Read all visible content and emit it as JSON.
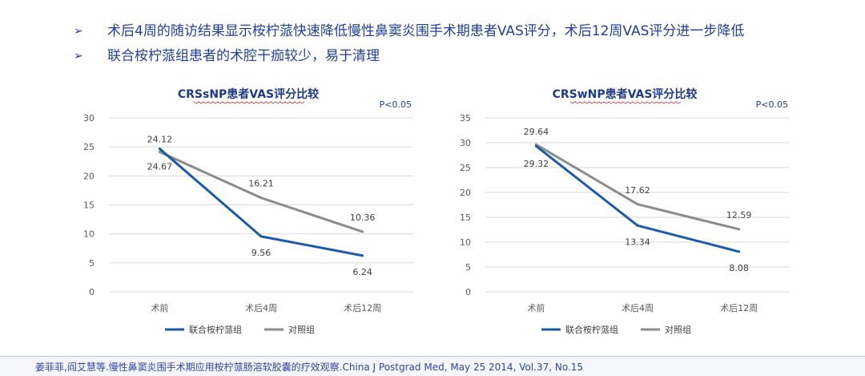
{
  "bullets": [
    {
      "marker": "➢",
      "text": "术后4周的随访结果显示桉柠蒎快速降低慢性鼻窦炎围手术期患者VAS评分，术后12周VAS评分进一步降低"
    },
    {
      "marker": "➢",
      "text": "联合桉柠蒎组患者的术腔干痂较少，易于清理"
    }
  ],
  "chart_data": [
    {
      "type": "line",
      "title": "CRSsNP患者VAS评分比较",
      "annotation": "P<0.05",
      "categories": [
        "术前",
        "术后4周",
        "术后12周"
      ],
      "ylim": [
        0,
        30
      ],
      "yticks": [
        0,
        5,
        10,
        15,
        20,
        25,
        30
      ],
      "grid": true,
      "legend_position": "bottom",
      "series": [
        {
          "name": "联合桉柠蒎组",
          "values": [
            24.67,
            9.56,
            6.24
          ],
          "labels": [
            "24.67",
            "9.56",
            "6.24"
          ],
          "color": "#1c5ba8",
          "label_side": "below"
        },
        {
          "name": "对照组",
          "values": [
            24.12,
            16.21,
            10.36
          ],
          "labels": [
            "24.12",
            "16.21",
            "10.36"
          ],
          "color": "#8c8c8c",
          "label_side": "above"
        }
      ]
    },
    {
      "type": "line",
      "title": "CRSwNP患者VAS评分比较",
      "annotation": "P<0.05",
      "categories": [
        "术前",
        "术后4周",
        "术后12周"
      ],
      "ylim": [
        0,
        35
      ],
      "yticks": [
        0,
        5,
        10,
        15,
        20,
        25,
        30,
        35
      ],
      "grid": true,
      "legend_position": "bottom",
      "series": [
        {
          "name": "联合桉柠蒎组",
          "values": [
            29.32,
            13.34,
            8.08
          ],
          "labels": [
            "29.32",
            "13.34",
            "8.08"
          ],
          "color": "#1c5ba8",
          "label_side": "below"
        },
        {
          "name": "对照组",
          "values": [
            29.64,
            17.62,
            12.59
          ],
          "labels": [
            "29.64",
            "17.62",
            "12.59"
          ],
          "color": "#8c8c8c",
          "label_side": "above"
        }
      ]
    }
  ],
  "footer": {
    "citation": "姜菲菲,阎艾慧等.慢性鼻窦炎围手术期应用桉柠蒎肠溶软胶囊的疗效观察.China J Postgrad Med, May 25 2014, Vol.37, No.15"
  }
}
